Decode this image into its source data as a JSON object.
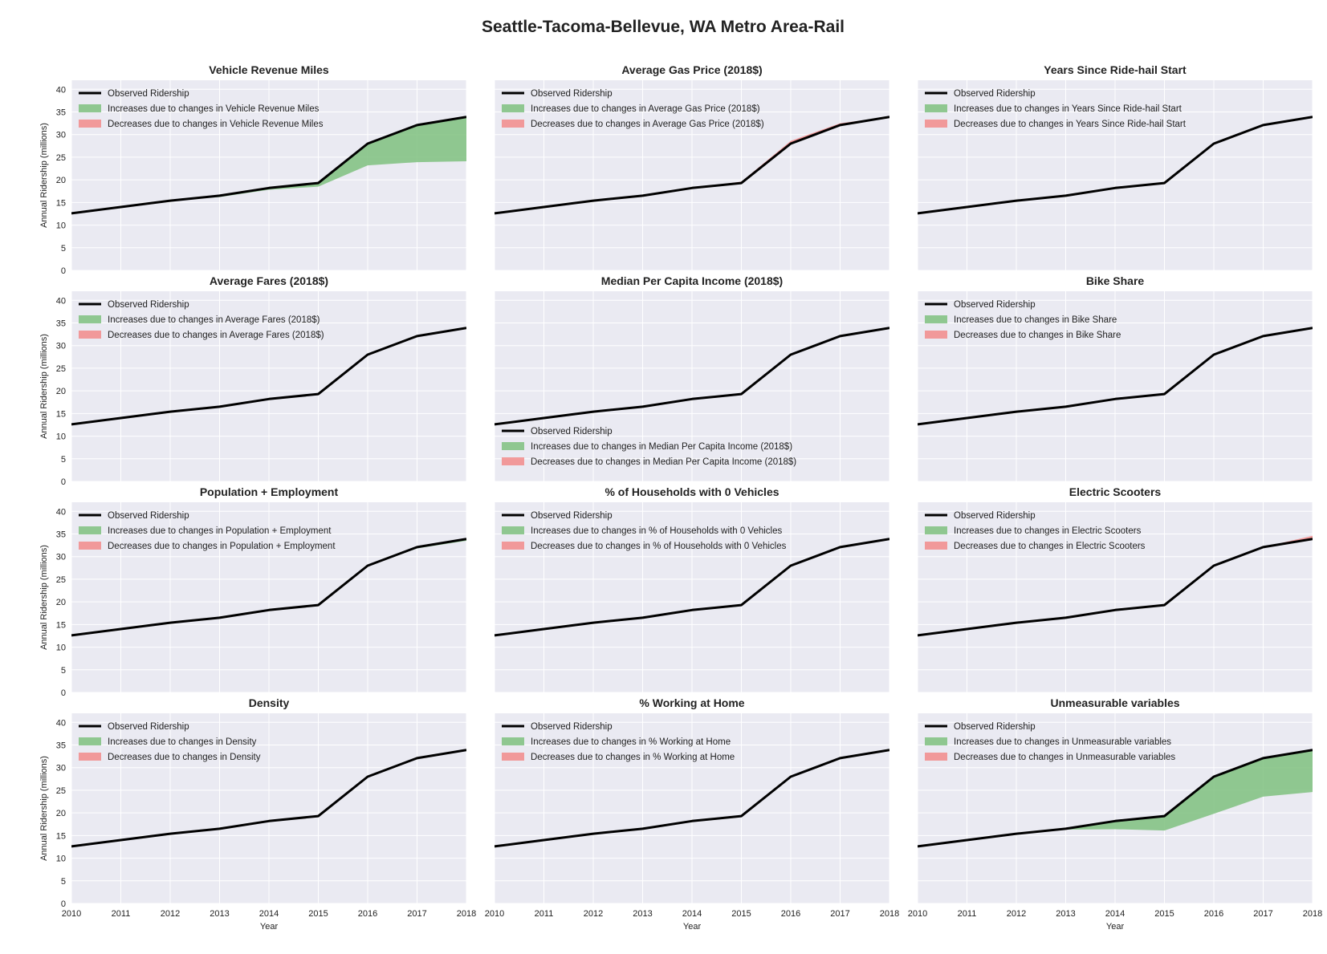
{
  "figure_title": "Seattle-Tacoma-Bellevue, WA Metro Area-Rail",
  "colors": {
    "panel_bg": "#EAEAF2",
    "grid": "#FFFFFF",
    "observed": "#000000",
    "increase": "#7FC17F",
    "decrease": "#F28B8B"
  },
  "chart_data": {
    "type": "line",
    "subtype": "small-multiples line with filled contribution areas",
    "xlabel": "Year",
    "ylabel": "Annual Ridership (millions)",
    "xlim": [
      2010,
      2018
    ],
    "ylim": [
      0,
      42
    ],
    "xticks": [
      2010,
      2011,
      2012,
      2013,
      2014,
      2015,
      2016,
      2017,
      2018
    ],
    "yticks": [
      0,
      5,
      10,
      15,
      20,
      25,
      30,
      35,
      40
    ],
    "grid": true,
    "x": [
      2010,
      2011,
      2012,
      2013,
      2014,
      2015,
      2016,
      2017,
      2018
    ],
    "observed_name": "Observed Ridership",
    "observed": [
      12.6,
      14.0,
      15.4,
      16.5,
      18.2,
      19.3,
      28.0,
      32.1,
      33.9
    ],
    "panels": [
      {
        "title": "Vehicle Revenue Miles",
        "legend_increase": "Increases due to changes in Vehicle Revenue Miles",
        "legend_decrease": "Decreases due to changes in Vehicle Revenue Miles",
        "legend_position": "top-left",
        "counterfactual": [
          12.6,
          14.0,
          15.4,
          16.2,
          17.8,
          18.5,
          23.2,
          23.9,
          24.1
        ]
      },
      {
        "title": "Average Gas Price (2018$)",
        "legend_increase": "Increases due to changes in Average Gas Price (2018$)",
        "legend_decrease": "Decreases due to changes in Average Gas Price (2018$)",
        "legend_position": "top-left",
        "counterfactual": [
          12.6,
          14.0,
          15.4,
          16.5,
          18.2,
          19.6,
          28.6,
          32.5,
          33.9
        ]
      },
      {
        "title": "Years Since Ride-hail Start",
        "legend_increase": "Increases due to changes in Years Since Ride-hail Start",
        "legend_decrease": "Decreases due to changes in Years Since Ride-hail Start",
        "legend_position": "top-left",
        "counterfactual": [
          12.6,
          14.0,
          15.4,
          16.5,
          18.2,
          19.3,
          28.0,
          32.1,
          33.9
        ]
      },
      {
        "title": "Average Fares (2018$)",
        "legend_increase": "Increases due to changes in Average Fares (2018$)",
        "legend_decrease": "Decreases due to changes in Average Fares (2018$)",
        "legend_position": "top-left",
        "counterfactual": [
          12.6,
          14.0,
          15.4,
          16.5,
          18.2,
          19.3,
          28.0,
          32.1,
          33.9
        ]
      },
      {
        "title": "Median Per Capita Income (2018$)",
        "legend_increase": "Increases due to changes in Median Per Capita Income (2018$)",
        "legend_decrease": "Decreases due to changes in Median Per Capita Income (2018$)",
        "legend_position": "bottom-left",
        "counterfactual": [
          12.6,
          14.0,
          15.4,
          16.5,
          18.2,
          19.3,
          28.0,
          32.1,
          33.9
        ]
      },
      {
        "title": "Bike Share",
        "legend_increase": "Increases due to changes in Bike Share",
        "legend_decrease": "Decreases due to changes in Bike Share",
        "legend_position": "top-left",
        "counterfactual": [
          12.6,
          14.0,
          15.4,
          16.5,
          18.2,
          19.3,
          28.0,
          32.1,
          33.9
        ]
      },
      {
        "title": "Population + Employment",
        "legend_increase": "Increases due to changes in Population + Employment",
        "legend_decrease": "Decreases due to changes in Population + Employment",
        "legend_position": "top-left",
        "counterfactual": [
          12.6,
          14.0,
          15.4,
          16.5,
          18.2,
          19.3,
          27.9,
          31.8,
          33.5
        ]
      },
      {
        "title": "% of Households with 0 Vehicles",
        "legend_increase": "Increases due to changes in % of Households with 0 Vehicles",
        "legend_decrease": "Decreases due to changes in % of Households with 0 Vehicles",
        "legend_position": "top-left",
        "counterfactual": [
          12.6,
          14.0,
          15.4,
          16.5,
          18.2,
          19.3,
          28.0,
          32.1,
          33.9
        ]
      },
      {
        "title": "Electric Scooters",
        "legend_increase": "Increases due to changes in Electric Scooters",
        "legend_decrease": "Decreases due to changes in Electric Scooters",
        "legend_position": "top-left",
        "counterfactual": [
          12.6,
          14.0,
          15.4,
          16.5,
          18.2,
          19.3,
          28.0,
          32.1,
          34.6
        ]
      },
      {
        "title": "Density",
        "legend_increase": "Increases due to changes in Density",
        "legend_decrease": "Decreases due to changes in Density",
        "legend_position": "top-left",
        "counterfactual": [
          12.6,
          14.0,
          15.4,
          16.5,
          18.2,
          19.3,
          28.0,
          32.1,
          33.9
        ]
      },
      {
        "title": "% Working at Home",
        "legend_increase": "Increases due to changes in % Working at Home",
        "legend_decrease": "Decreases due to changes in % Working at Home",
        "legend_position": "top-left",
        "counterfactual": [
          12.6,
          14.0,
          15.4,
          16.5,
          18.2,
          19.3,
          28.0,
          32.1,
          33.9
        ]
      },
      {
        "title": "Unmeasurable variables",
        "legend_increase": "Increases due to changes in Unmeasurable variables",
        "legend_decrease": "Decreases due to changes in Unmeasurable variables",
        "legend_position": "top-left",
        "counterfactual": [
          12.6,
          14.0,
          15.4,
          16.3,
          16.4,
          16.1,
          19.8,
          23.6,
          24.6
        ]
      }
    ]
  }
}
